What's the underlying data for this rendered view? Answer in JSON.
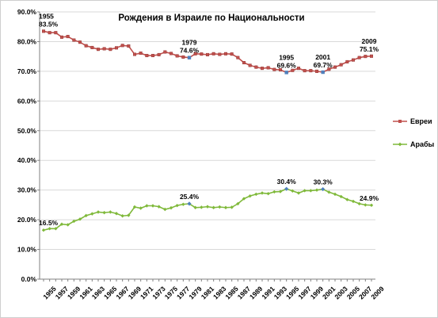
{
  "chart_data": {
    "type": "line",
    "title": "Рождения в Израиле по Национальности",
    "xlabel": "",
    "ylabel": "",
    "ylim": [
      0,
      90
    ],
    "y_ticks": [
      "0.0%",
      "10.0%",
      "20.0%",
      "30.0%",
      "40.0%",
      "50.0%",
      "60.0%",
      "70.0%",
      "80.0%",
      "90.0%"
    ],
    "x": [
      1955,
      1956,
      1957,
      1958,
      1959,
      1960,
      1961,
      1962,
      1963,
      1964,
      1965,
      1966,
      1967,
      1968,
      1969,
      1970,
      1971,
      1972,
      1973,
      1974,
      1975,
      1976,
      1977,
      1978,
      1979,
      1980,
      1981,
      1982,
      1983,
      1984,
      1985,
      1986,
      1987,
      1988,
      1989,
      1990,
      1991,
      1992,
      1993,
      1994,
      1995,
      1996,
      1997,
      1998,
      1999,
      2000,
      2001,
      2002,
      2003,
      2004,
      2005,
      2006,
      2007,
      2008,
      2009
    ],
    "x_tick_labels": [
      "1955",
      "1957",
      "1959",
      "1961",
      "1963",
      "1965",
      "1967",
      "1969",
      "1971",
      "1973",
      "1975",
      "1977",
      "1979",
      "1981",
      "1983",
      "1985",
      "1987",
      "1989",
      "1991",
      "1993",
      "1995",
      "1997",
      "1999",
      "2001",
      "2003",
      "2005",
      "2007",
      "2009"
    ],
    "legend_position": "right",
    "grid": true,
    "series": [
      {
        "name": "Евреи",
        "color": "#c0504d",
        "values": [
          83.5,
          83.0,
          83.0,
          81.5,
          81.7,
          80.5,
          79.8,
          78.6,
          78.0,
          77.4,
          77.6,
          77.4,
          77.9,
          78.7,
          78.5,
          75.7,
          76.1,
          75.3,
          75.3,
          75.6,
          76.5,
          76.0,
          75.2,
          74.8,
          74.6,
          75.9,
          75.8,
          75.6,
          75.9,
          75.7,
          75.9,
          75.8,
          74.6,
          72.9,
          72.0,
          71.4,
          71.0,
          71.2,
          70.6,
          70.5,
          69.6,
          70.3,
          71.0,
          70.2,
          70.2,
          70.0,
          69.7,
          70.7,
          71.4,
          72.2,
          73.2,
          73.8,
          74.6,
          75.0,
          75.1
        ]
      },
      {
        "name": "Арабы",
        "color": "#7fb93a",
        "values": [
          16.5,
          17.0,
          17.0,
          18.5,
          18.3,
          19.5,
          20.2,
          21.4,
          22.0,
          22.6,
          22.4,
          22.6,
          22.1,
          21.3,
          21.5,
          24.3,
          23.9,
          24.7,
          24.7,
          24.4,
          23.5,
          24.0,
          24.8,
          25.2,
          25.4,
          24.1,
          24.2,
          24.4,
          24.1,
          24.3,
          24.1,
          24.2,
          25.4,
          27.1,
          28.0,
          28.6,
          29.0,
          28.8,
          29.4,
          29.5,
          30.4,
          29.7,
          29.0,
          29.8,
          29.8,
          30.0,
          30.3,
          29.3,
          28.6,
          27.8,
          26.8,
          26.2,
          25.4,
          25.0,
          24.9
        ]
      }
    ],
    "annotations": [
      {
        "series": 0,
        "x": 1955,
        "year": "1955",
        "value": "83.5%"
      },
      {
        "series": 0,
        "x": 1979,
        "year": "1979",
        "value": "74.6%"
      },
      {
        "series": 0,
        "x": 1995,
        "year": "1995",
        "value": "69.6%"
      },
      {
        "series": 0,
        "x": 2001,
        "year": "2001",
        "value": "69.7%"
      },
      {
        "series": 0,
        "x": 2009,
        "year": "2009",
        "value": "75.1%"
      },
      {
        "series": 1,
        "x": 1955,
        "value": "16.5%"
      },
      {
        "series": 1,
        "x": 1979,
        "value": "25.4%"
      },
      {
        "series": 1,
        "x": 1995,
        "value": "30.4%"
      },
      {
        "series": 1,
        "x": 2001,
        "value": "30.3%"
      },
      {
        "series": 1,
        "x": 2009,
        "value": "24.9%"
      }
    ],
    "highlight_marker_color": "#4f81bd"
  }
}
